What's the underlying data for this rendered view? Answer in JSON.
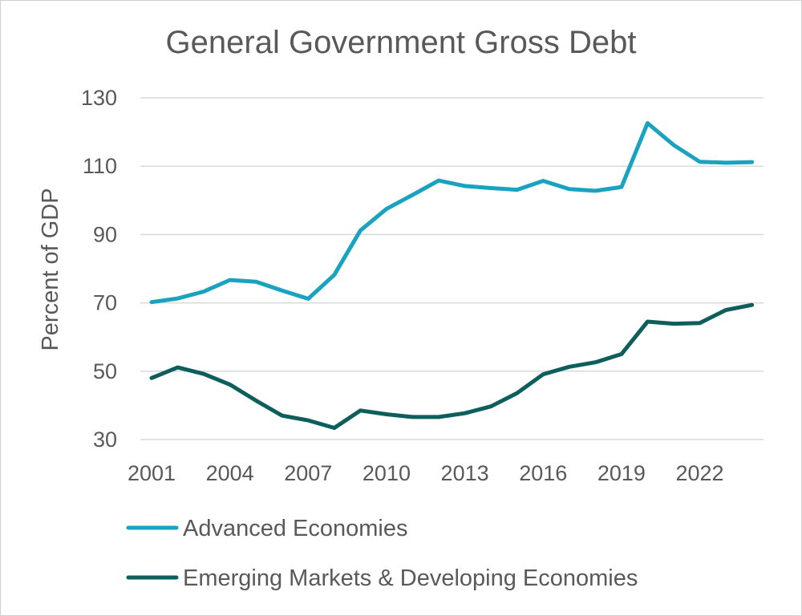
{
  "chart_data": {
    "type": "line",
    "title": "General Government Gross Debt",
    "xlabel": "",
    "ylabel": "Percent of GDP",
    "ylim": [
      30,
      130
    ],
    "yticks": [
      "30",
      "50",
      "70",
      "90",
      "110",
      "130"
    ],
    "xtick_labels": [
      "2001",
      "2004",
      "2007",
      "2010",
      "2013",
      "2016",
      "2019",
      "2022"
    ],
    "x": [
      2001,
      2002,
      2003,
      2004,
      2005,
      2006,
      2007,
      2008,
      2009,
      2010,
      2011,
      2012,
      2013,
      2014,
      2015,
      2016,
      2017,
      2018,
      2019,
      2020,
      2021,
      2022,
      2023,
      2024
    ],
    "grid": true,
    "legend_position": "bottom",
    "series": [
      {
        "name": "Advanced Economies",
        "color": "#1aa3c0",
        "values": [
          70.2,
          71.3,
          73.3,
          76.7,
          76.2,
          73.6,
          71.2,
          78.2,
          91.2,
          97.5,
          101.6,
          105.8,
          104.2,
          103.6,
          103.1,
          105.7,
          103.3,
          102.8,
          103.9,
          122.6,
          116.2,
          111.3,
          111.0,
          111.2
        ]
      },
      {
        "name": "Emerging Markets & Developing Economies",
        "color": "#0e5e5c",
        "values": [
          48.0,
          51.1,
          49.2,
          46.1,
          41.4,
          37.0,
          35.6,
          33.4,
          38.5,
          37.4,
          36.6,
          36.6,
          37.7,
          39.7,
          43.6,
          49.1,
          51.3,
          52.6,
          55.0,
          64.5,
          63.9,
          64.1,
          67.9,
          69.4
        ]
      }
    ]
  }
}
